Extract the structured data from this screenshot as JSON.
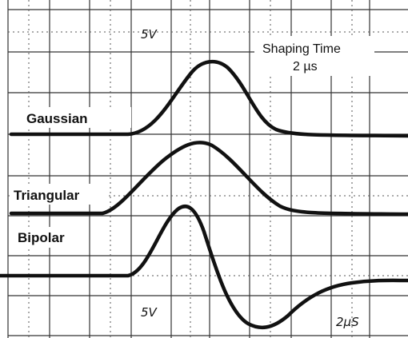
{
  "scope": {
    "top_label": "5V",
    "shaping_time": "Shaping Time",
    "shaping_value": "2 µs",
    "traces": [
      "Gaussian",
      "Triangular",
      "Bipolar"
    ],
    "bottom_volts": "5V",
    "bottom_time": "2µS"
  }
}
